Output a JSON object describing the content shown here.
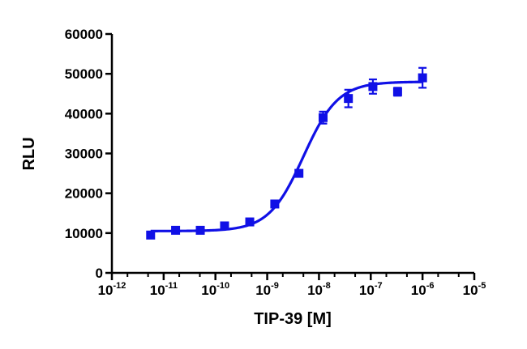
{
  "chart_data": {
    "type": "scatter",
    "xlabel": "TIP-39 [M]",
    "ylabel": "RLU",
    "x_scale": "log",
    "xlim": [
      1e-12,
      1e-05
    ],
    "ylim": [
      0,
      60000
    ],
    "y_ticks": [
      "0",
      "10000",
      "20000",
      "30000",
      "40000",
      "50000",
      "60000"
    ],
    "x_ticks": [
      {
        "base": "10",
        "exp": "-12"
      },
      {
        "base": "10",
        "exp": "-11"
      },
      {
        "base": "10",
        "exp": "-10"
      },
      {
        "base": "10",
        "exp": "-9"
      },
      {
        "base": "10",
        "exp": "-8"
      },
      {
        "base": "10",
        "exp": "-7"
      },
      {
        "base": "10",
        "exp": "-6"
      },
      {
        "base": "10",
        "exp": "-5"
      }
    ],
    "grid": false,
    "color": "#1010e6",
    "series": [
      {
        "points": [
          {
            "x": 5.6e-12,
            "y": 9500,
            "err": 500
          },
          {
            "x": 1.7e-11,
            "y": 10700,
            "err": 400
          },
          {
            "x": 5.1e-11,
            "y": 10700,
            "err": 400
          },
          {
            "x": 1.5e-10,
            "y": 11800,
            "err": 400
          },
          {
            "x": 4.6e-10,
            "y": 12800,
            "err": 400
          },
          {
            "x": 1.4e-09,
            "y": 17300,
            "err": 500
          },
          {
            "x": 4.1e-09,
            "y": 25000,
            "err": 500
          },
          {
            "x": 1.2e-08,
            "y": 39000,
            "err": 1500
          },
          {
            "x": 3.7e-08,
            "y": 43800,
            "err": 2200
          },
          {
            "x": 1.1e-07,
            "y": 46800,
            "err": 1800
          },
          {
            "x": 3.3e-07,
            "y": 45500,
            "err": 1000
          },
          {
            "x": 1e-06,
            "y": 49000,
            "err": 2500
          }
        ],
        "fit": {
          "model": "four-parameter logistic",
          "bottom": 10500,
          "top": 48000,
          "log_ec50": -8.3,
          "hill": 1.3,
          "x_range": [
            5.6e-12,
            1e-06
          ]
        }
      }
    ]
  }
}
